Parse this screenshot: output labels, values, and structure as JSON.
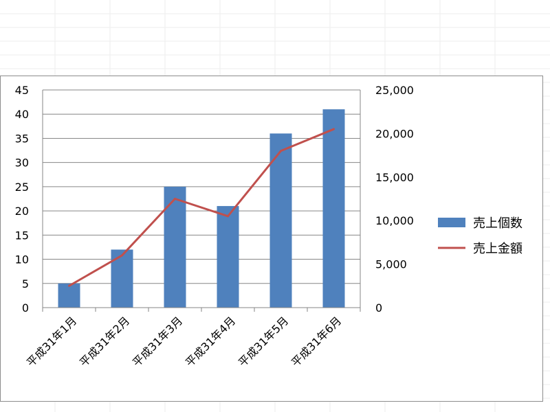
{
  "chart_data": {
    "type": "bar+line",
    "categories": [
      "平成31年1月",
      "平成31年2月",
      "平成31年3月",
      "平成31年4月",
      "平成31年5月",
      "平成31年6月"
    ],
    "series": [
      {
        "name": "売上個数",
        "type": "bar",
        "axis": "left",
        "color": "#4f81bd",
        "values": [
          5,
          12,
          25,
          21,
          36,
          41
        ]
      },
      {
        "name": "売上金額",
        "type": "line",
        "axis": "right",
        "color": "#c0504d",
        "values": [
          2500,
          6000,
          12500,
          10500,
          18000,
          20500
        ]
      }
    ],
    "left_axis": {
      "ticks": [
        "0",
        "5",
        "10",
        "15",
        "20",
        "25",
        "30",
        "35",
        "40",
        "45"
      ],
      "min": 0,
      "max": 45
    },
    "right_axis": {
      "ticks": [
        "0",
        "5,000",
        "10,000",
        "15,000",
        "20,000",
        "25,000"
      ],
      "min": 0,
      "max": 25000
    },
    "grid": true,
    "legend_position": "right"
  }
}
